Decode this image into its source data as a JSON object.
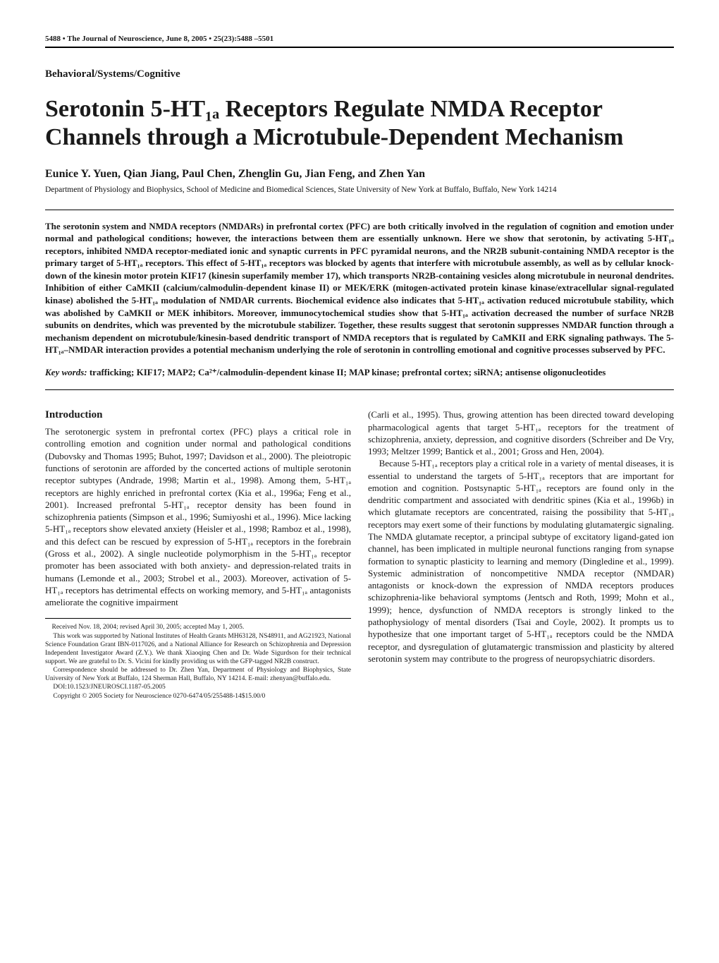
{
  "running_head": {
    "left": "5488 • The Journal of Neuroscience, June 8, 2005 • 25(23):5488 –5501",
    "right": ""
  },
  "section_label": "Behavioral/Systems/Cognitive",
  "title": "Serotonin 5-HT₁ₐ Receptors Regulate NMDA Receptor Channels through a Microtubule-Dependent Mechanism",
  "authors": "Eunice Y. Yuen, Qian Jiang, Paul Chen, Zhenglin Gu, Jian Feng, and Zhen Yan",
  "affiliation": "Department of Physiology and Biophysics, School of Medicine and Biomedical Sciences, State University of New York at Buffalo, Buffalo, New York 14214",
  "abstract": "The serotonin system and NMDA receptors (NMDARs) in prefrontal cortex (PFC) are both critically involved in the regulation of cognition and emotion under normal and pathological conditions; however, the interactions between them are essentially unknown. Here we show that serotonin, by activating 5-HT₁ₐ receptors, inhibited NMDA receptor-mediated ionic and synaptic currents in PFC pyramidal neurons, and the NR2B subunit-containing NMDA receptor is the primary target of 5-HT₁ₐ receptors. This effect of 5-HT₁ₐ receptors was blocked by agents that interfere with microtubule assembly, as well as by cellular knock-down of the kinesin motor protein KIF17 (kinesin superfamily member 17), which transports NR2B-containing vesicles along microtubule in neuronal dendrites. Inhibition of either CaMKII (calcium/calmodulin-dependent kinase II) or MEK/ERK (mitogen-activated protein kinase kinase/extracellular signal-regulated kinase) abolished the 5-HT₁ₐ modulation of NMDAR currents. Biochemical evidence also indicates that 5-HT₁ₐ activation reduced microtubule stability, which was abolished by CaMKII or MEK inhibitors. Moreover, immunocytochemical studies show that 5-HT₁ₐ activation decreased the number of surface NR2B subunits on dendrites, which was prevented by the microtubule stabilizer. Together, these results suggest that serotonin suppresses NMDAR function through a mechanism dependent on microtubule/kinesin-based dendritic transport of NMDA receptors that is regulated by CaMKII and ERK signaling pathways. The 5-HT₁ₐ–NMDAR interaction provides a potential mechanism underlying the role of serotonin in controlling emotional and cognitive processes subserved by PFC.",
  "keywords_label": "Key words:",
  "keywords": " trafficking; KIF17; MAP2; Ca²⁺/calmodulin-dependent kinase II; MAP kinase; prefrontal cortex; siRNA; antisense oligonucleotides",
  "intro_heading": "Introduction",
  "left_col": {
    "p1": "The serotonergic system in prefrontal cortex (PFC) plays a critical role in controlling emotion and cognition under normal and pathological conditions (Dubovsky and Thomas 1995; Buhot, 1997; Davidson et al., 2000). The pleiotropic functions of serotonin are afforded by the concerted actions of multiple serotonin receptor subtypes (Andrade, 1998; Martin et al., 1998). Among them, 5-HT₁ₐ receptors are highly enriched in prefrontal cortex (Kia et al., 1996a; Feng et al., 2001). Increased prefrontal 5-HT₁ₐ receptor density has been found in schizophrenia patients (Simpson et al., 1996; Sumiyoshi et al., 1996). Mice lacking 5-HT₁ₐ receptors show elevated anxiety (Heisler et al., 1998; Ramboz et al., 1998), and this defect can be rescued by expression of 5-HT₁ₐ receptors in the forebrain (Gross et al., 2002). A single nucleotide polymorphism in the 5-HT₁ₐ receptor promoter has been associated with both anxiety- and depression-related traits in humans (Lemonde et al., 2003; Strobel et al., 2003). Moreover, activation of 5-HT₁ₐ receptors has detrimental effects on working memory, and 5-HT₁ₐ antagonists ameliorate the cognitive impairment"
  },
  "right_col": {
    "p1": "(Carli et al., 1995). Thus, growing attention has been directed toward developing pharmacological agents that target 5-HT₁ₐ receptors for the treatment of schizophrenia, anxiety, depression, and cognitive disorders (Schreiber and De Vry, 1993; Meltzer 1999; Bantick et al., 2001; Gross and Hen, 2004).",
    "p2": "Because 5-HT₁ₐ receptors play a critical role in a variety of mental diseases, it is essential to understand the targets of 5-HT₁ₐ receptors that are important for emotion and cognition. Postsynaptic 5-HT₁ₐ receptors are found only in the dendritic compartment and associated with dendritic spines (Kia et al., 1996b) in which glutamate receptors are concentrated, raising the possibility that 5-HT₁ₐ receptors may exert some of their functions by modulating glutamatergic signaling. The NMDA glutamate receptor, a principal subtype of excitatory ligand-gated ion channel, has been implicated in multiple neuronal functions ranging from synapse formation to synaptic plasticity to learning and memory (Dingledine et al., 1999). Systemic administration of noncompetitive NMDA receptor (NMDAR) antagonists or knock-down the expression of NMDA receptors produces schizophrenia-like behavioral symptoms (Jentsch and Roth, 1999; Mohn et al., 1999); hence, dysfunction of NMDA receptors is strongly linked to the pathophysiology of mental disorders (Tsai and Coyle, 2002). It prompts us to hypothesize that one important target of 5-HT₁ₐ receptors could be the NMDA receptor, and dysregulation of glutamatergic transmission and plasticity by altered serotonin system may contribute to the progress of neuropsychiatric disorders."
  },
  "footnotes": {
    "received": "Received Nov. 18, 2004; revised April 30, 2005; accepted May 1, 2005.",
    "funding": "This work was supported by National Institutes of Health Grants MH63128, NS48911, and AG21923, National Science Foundation Grant IBN-0117026, and a National Alliance for Research on Schizophrenia and Depression Independent Investigator Award (Z.Y.). We thank Xiaoqing Chen and Dr. Wade Sigurdson for their technical support. We are grateful to Dr. S. Vicini for kindly providing us with the GFP-tagged NR2B construct.",
    "correspondence": "Correspondence should be addressed to Dr. Zhen Yan, Department of Physiology and Biophysics, State University of New York at Buffalo, 124 Sherman Hall, Buffalo, NY 14214. E-mail: zhenyan@buffalo.edu.",
    "doi": "DOI:10.1523/JNEUROSCI.1187-05.2005",
    "copyright": "Copyright © 2005 Society for Neuroscience   0270-6474/05/255488-14$15.00/0"
  }
}
